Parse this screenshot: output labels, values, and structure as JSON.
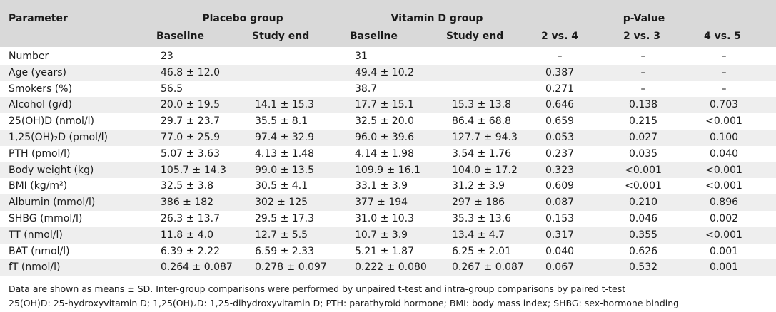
{
  "header": {
    "parameter": "Parameter",
    "placebo_group": "Placebo group",
    "vitamin_d_group": "Vitamin D group",
    "p_value": "p-Value",
    "baseline_1": "Baseline",
    "study_end_1": "Study end",
    "baseline_2": "Baseline",
    "study_end_2": "Study end",
    "cmp_2_4": "2 vs. 4",
    "cmp_2_3": "2 vs. 3",
    "cmp_4_5": "4 vs. 5"
  },
  "rows": [
    {
      "param": "Number",
      "pb": "23",
      "pe": "",
      "vb": "31",
      "ve": "",
      "p24": "–",
      "p23": "–",
      "p45": "–"
    },
    {
      "param": "Age (years)",
      "pb": "46.8 ± 12.0",
      "pe": "",
      "vb": "49.4 ± 10.2",
      "ve": "",
      "p24": "0.387",
      "p23": "–",
      "p45": "–"
    },
    {
      "param": "Smokers (%)",
      "pb": "56.5",
      "pe": "",
      "vb": "38.7",
      "ve": "",
      "p24": "0.271",
      "p23": "–",
      "p45": "–"
    },
    {
      "param": "Alcohol (g/d)",
      "pb": "20.0 ± 19.5",
      "pe": "14.1 ± 15.3",
      "vb": "17.7 ± 15.1",
      "ve": "15.3 ± 13.8",
      "p24": "0.646",
      "p23": "0.138",
      "p45": "0.703"
    },
    {
      "param": "25(OH)D (nmol/l)",
      "pb": "29.7 ± 23.7",
      "pe": "35.5 ± 8.1",
      "vb": "32.5 ± 20.0",
      "ve": "86.4 ± 68.8",
      "p24": "0.659",
      "p23": "0.215",
      "p45": "<0.001"
    },
    {
      "param": "1,25(OH)₂D (pmol/l)",
      "pb": "77.0 ± 25.9",
      "pe": "97.4 ± 32.9",
      "vb": "96.0 ± 39.6",
      "ve": "127.7 ± 94.3",
      "p24": "0.053",
      "p23": "0.027",
      "p45": "0.100"
    },
    {
      "param": "PTH (pmol/l)",
      "pb": "5.07 ± 3.63",
      "pe": "4.13 ± 1.48",
      "vb": "4.14 ± 1.98",
      "ve": "3.54 ± 1.76",
      "p24": "0.237",
      "p23": "0.035",
      "p45": "0.040"
    },
    {
      "param": "Body weight (kg)",
      "pb": "105.7 ± 14.3",
      "pe": "99.0 ± 13.5",
      "vb": "109.9 ± 16.1",
      "ve": "104.0 ± 17.2",
      "p24": "0.323",
      "p23": "<0.001",
      "p45": "<0.001"
    },
    {
      "param": "BMI (kg/m²)",
      "pb": "32.5 ± 3.8",
      "pe": "30.5 ± 4.1",
      "vb": "33.1 ± 3.9",
      "ve": "31.2 ± 3.9",
      "p24": "0.609",
      "p23": "<0.001",
      "p45": "<0.001"
    },
    {
      "param": "Albumin (mmol/l)",
      "pb": "386 ± 182",
      "pe": "302 ± 125",
      "vb": "377 ± 194",
      "ve": "297 ± 186",
      "p24": "0.087",
      "p23": "0.210",
      "p45": "0.896"
    },
    {
      "param": "SHBG (mmol/l)",
      "pb": "26.3 ± 13.7",
      "pe": "29.5 ± 17.3",
      "vb": "31.0 ± 10.3",
      "ve": "35.3 ± 13.6",
      "p24": "0.153",
      "p23": "0.046",
      "p45": "0.002"
    },
    {
      "param": "TT (nmol/l)",
      "pb": "11.8 ± 4.0",
      "pe": "12.7 ± 5.5",
      "vb": "10.7 ± 3.9",
      "ve": "13.4 ± 4.7",
      "p24": "0.317",
      "p23": "0.355",
      "p45": "<0.001"
    },
    {
      "param": "BAT (nmol/l)",
      "pb": "6.39 ± 2.22",
      "pe": "6.59 ± 2.33",
      "vb": "5.21 ± 1.87",
      "ve": "6.25 ± 2.01",
      "p24": "0.040",
      "p23": "0.626",
      "p45": "0.001"
    },
    {
      "param": "fT (nmol/l)",
      "pb": "0.264 ± 0.087",
      "pe": "0.278 ± 0.097",
      "vb": "0.222 ± 0.080",
      "ve": "0.267 ± 0.087",
      "p24": "0.067",
      "p23": "0.532",
      "p45": "0.001"
    }
  ],
  "footnotes": {
    "line1": "Data are shown as means ± SD. Inter-group comparisons were performed by unpaired t-test and intra-group comparisons by paired t-test",
    "line2": "25(OH)D: 25-hydroxyvitamin D; 1,25(OH)₂D: 1,25-dihydroxyvitamin D; PTH: parathyroid hormone; BMI: body mass index; SHBG: sex-hormone binding"
  }
}
